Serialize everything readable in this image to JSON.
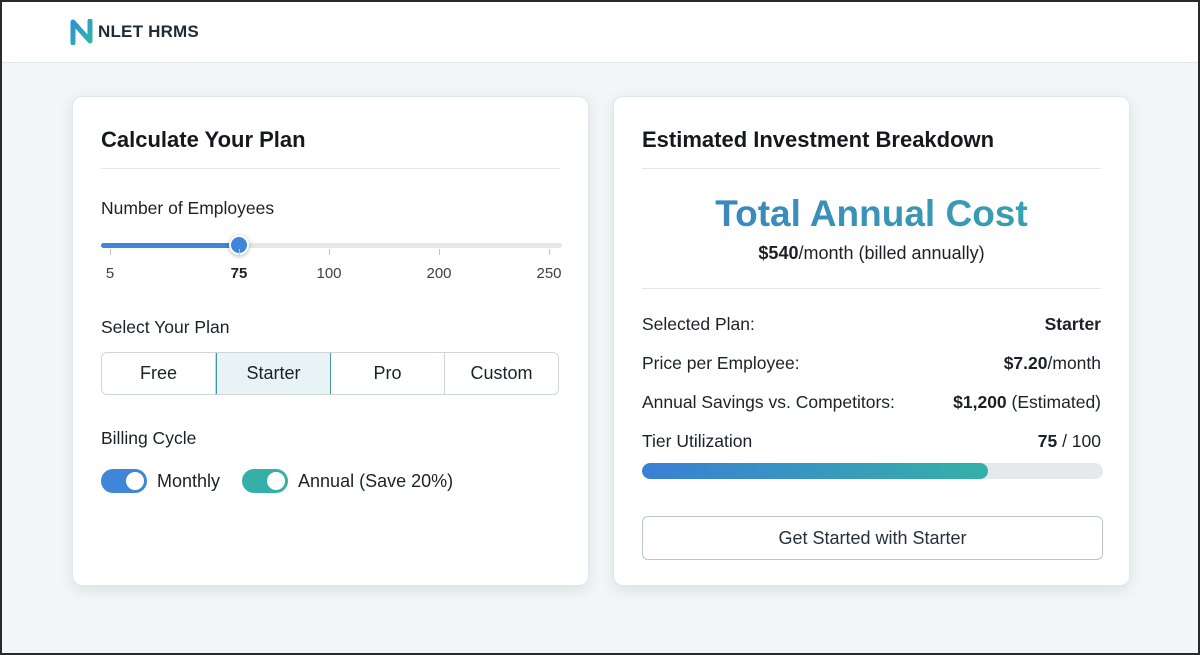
{
  "brand": {
    "logo_letter": "N",
    "name": "NLET HRMS"
  },
  "calculator": {
    "title": "Calculate Your Plan",
    "employees": {
      "label": "Number of Employees",
      "value": 75,
      "min": 5,
      "max": 250,
      "ticks": [
        "5",
        "75",
        "100",
        "200",
        "250"
      ],
      "selected_tick": "75"
    },
    "plan": {
      "label": "Select Your Plan",
      "options": [
        "Free",
        "Starter",
        "Pro",
        "Custom"
      ],
      "selected": "Starter"
    },
    "billing": {
      "label": "Billing Cycle",
      "monthly_label": "Monthly",
      "annual_label": "Annual (Save 20%)"
    }
  },
  "breakdown": {
    "title": "Estimated Investment Breakdown",
    "total_title": "Total Annual Cost",
    "monthly_amount": "$540",
    "monthly_suffix": "/month (billed annually)",
    "rows": [
      {
        "label": "Selected Plan:",
        "value": "Starter",
        "suffix": ""
      },
      {
        "label": "Price per Employee:",
        "value": "$7.20",
        "suffix": "/month"
      },
      {
        "label": "Annual Savings vs. Competitors:",
        "value": "$1,200",
        "suffix": " (Estimated)"
      }
    ],
    "utilization": {
      "label": "Tier Utilization",
      "used": "75",
      "total": "/ 100",
      "fraction": 0.75
    },
    "cta_label": "Get Started with Starter"
  },
  "colors": {
    "accent_blue": "#3f86d8",
    "accent_teal": "#35b0a8"
  }
}
